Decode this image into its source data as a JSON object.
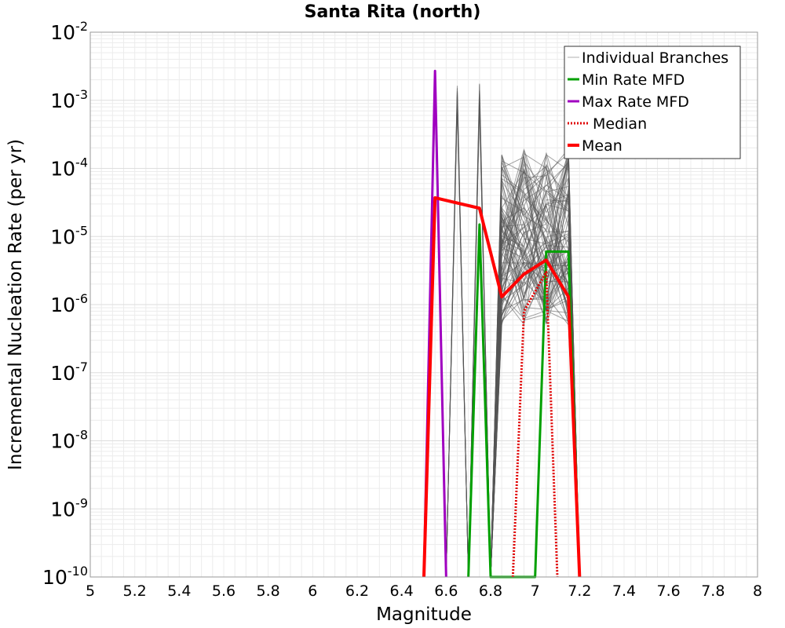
{
  "chart_data": {
    "type": "line",
    "title": "Santa Rita (north)",
    "xlabel": "Magnitude",
    "ylabel": "Incremental Nucleation Rate (per yr)",
    "xlim": [
      5,
      8
    ],
    "ylim": [
      1e-10,
      0.01
    ],
    "yscale": "log",
    "grid": true,
    "legend_position": "top-right",
    "x_ticks": [
      "5",
      "5.2",
      "5.4",
      "5.6",
      "5.8",
      "6",
      "6.2",
      "6.4",
      "6.6",
      "6.8",
      "7",
      "7.2",
      "7.4",
      "7.6",
      "7.8",
      "8"
    ],
    "y_ticks": [
      {
        "base": "10",
        "exp": "-10"
      },
      {
        "base": "10",
        "exp": "-9"
      },
      {
        "base": "10",
        "exp": "-8"
      },
      {
        "base": "10",
        "exp": "-7"
      },
      {
        "base": "10",
        "exp": "-6"
      },
      {
        "base": "10",
        "exp": "-5"
      },
      {
        "base": "10",
        "exp": "-4"
      },
      {
        "base": "10",
        "exp": "-3"
      },
      {
        "base": "10",
        "exp": "-2"
      }
    ],
    "legend": [
      {
        "label": "Individual Branches",
        "color": "#b0b0b0",
        "style": "solid"
      },
      {
        "label": "Min Rate MFD",
        "color": "#00a000",
        "style": "solid"
      },
      {
        "label": "Max Rate MFD",
        "color": "#a000c0",
        "style": "solid"
      },
      {
        "label": "Median",
        "color": "#e00000",
        "style": "dotted"
      },
      {
        "label": "Mean",
        "color": "#ff0000",
        "style": "solid"
      }
    ],
    "branch_groups": [
      {
        "peak_x": 6.55,
        "min_y": 0.0008,
        "max_y": 0.0027,
        "count": 4
      },
      {
        "peak_x": 6.65,
        "min_y": 0.0008,
        "max_y": 0.0018,
        "count": 10
      },
      {
        "peak_x": 6.75,
        "min_y": 0.0008,
        "max_y": 0.0018,
        "count": 10
      },
      {
        "fan_x": [
          6.85,
          6.95,
          7.05,
          7.15
        ],
        "min_y": 5e-07,
        "max_y": 0.0002,
        "count": 90
      }
    ],
    "series": [
      {
        "name": "Max Rate MFD",
        "color": "#a000c0",
        "x": [
          6.5,
          6.55,
          6.6
        ],
        "y": [
          1e-10,
          0.0027,
          1e-10
        ]
      },
      {
        "name": "Min Rate MFD",
        "color": "#00a000",
        "x": [
          6.7,
          6.75,
          6.8,
          7.0,
          7.05,
          7.15,
          7.2
        ],
        "y": [
          1e-10,
          1.5e-05,
          1e-10,
          1e-10,
          6e-06,
          6e-06,
          1e-10
        ]
      },
      {
        "name": "Median",
        "color": "#e00000",
        "x": [
          6.9,
          6.95,
          7.05,
          7.1
        ],
        "y": [
          1e-10,
          8e-07,
          3e-06,
          1e-10
        ]
      },
      {
        "name": "Mean",
        "color": "#ff0000",
        "x": [
          6.5,
          6.55,
          6.75,
          6.85,
          6.95,
          7.05,
          7.15,
          7.2
        ],
        "y": [
          1e-10,
          3.7e-05,
          2.6e-05,
          1.3e-06,
          2.8e-06,
          4.5e-06,
          1.3e-06,
          1e-10
        ]
      }
    ]
  }
}
